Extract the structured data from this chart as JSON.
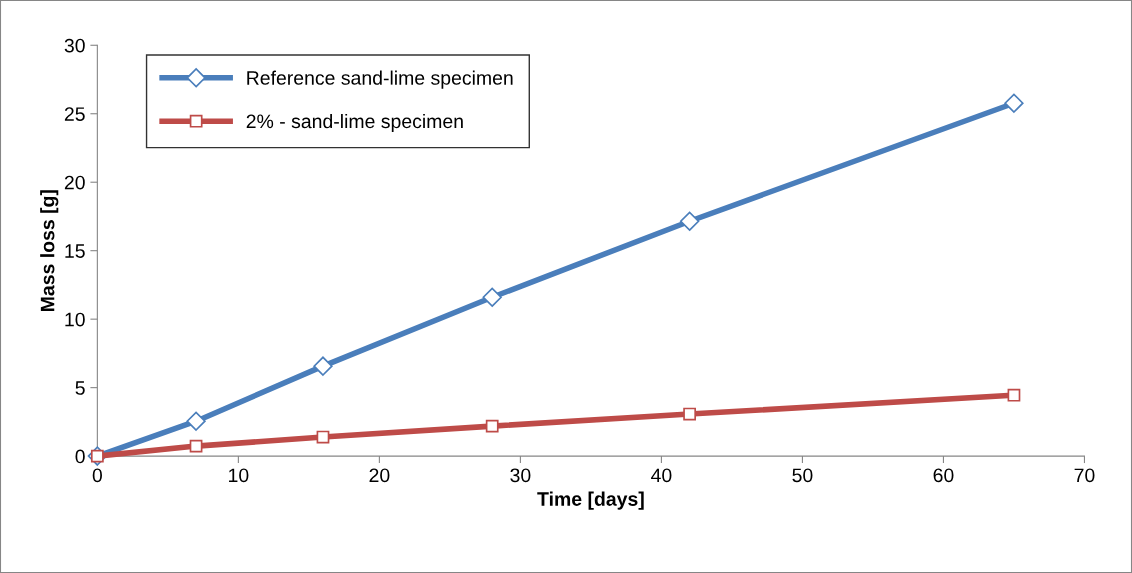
{
  "chart_data": {
    "type": "line",
    "xlabel": "Time [days]",
    "ylabel": "Mass loss [g]",
    "x": [
      0,
      7,
      16,
      28,
      42,
      65
    ],
    "series": [
      {
        "name": "Reference sand-lime specimen",
        "color": "#4a7ebb",
        "marker": "diamond",
        "values": [
          0,
          2.55,
          6.57,
          11.6,
          17.15,
          25.77
        ]
      },
      {
        "name": "2% - sand-lime specimen",
        "color": "#be4b48",
        "marker": "square",
        "values": [
          0,
          0.73,
          1.39,
          2.19,
          3.07,
          4.45
        ]
      }
    ],
    "xlim": [
      0,
      70
    ],
    "xticks": [
      0,
      10,
      20,
      30,
      40,
      50,
      60,
      70
    ],
    "ylim": [
      0,
      30
    ],
    "yticks": [
      0,
      5,
      10,
      15,
      20,
      25,
      30
    ],
    "grid": false,
    "legend": "top left",
    "line_style": "solid"
  }
}
